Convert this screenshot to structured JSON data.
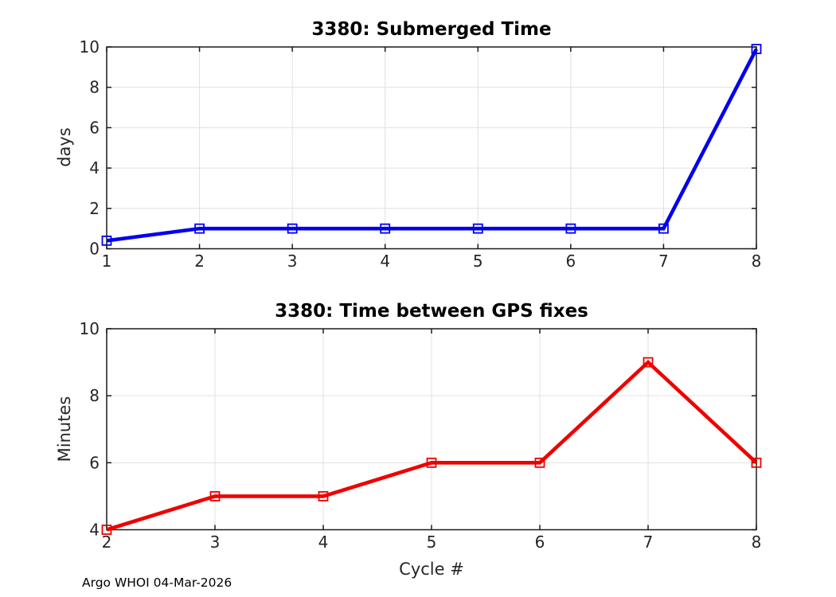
{
  "figure": {
    "footer": "Argo WHOI 04-Mar-2026",
    "background": "#ffffff",
    "grid_color": "#e0e0e0",
    "axis_color": "#1a1a1a",
    "text_color": "#262626",
    "tick_font_px": 20
  },
  "chart_data": [
    {
      "type": "line",
      "title": "3380: Submerged Time",
      "xlabel": "",
      "ylabel": "days",
      "x": [
        1,
        2,
        3,
        4,
        5,
        6,
        7,
        8
      ],
      "values": [
        0.4,
        1,
        1,
        1,
        1,
        1,
        1,
        9.9
      ],
      "series_color": "#0000ee",
      "marker": "open-square",
      "line_width": 4.6,
      "xlim": [
        1,
        8
      ],
      "ylim": [
        0,
        10
      ],
      "xticks": [
        1,
        2,
        3,
        4,
        5,
        6,
        7,
        8
      ],
      "yticks": [
        0,
        2,
        4,
        6,
        8,
        10
      ],
      "grid": true,
      "legend": "none"
    },
    {
      "type": "line",
      "title": "3380: Time between GPS fixes",
      "xlabel": "Cycle #",
      "ylabel": "Minutes",
      "x": [
        2,
        3,
        4,
        5,
        6,
        7,
        8
      ],
      "values": [
        4,
        5,
        5,
        6,
        6,
        9,
        6
      ],
      "series_color": "#ee0000",
      "marker": "open-square",
      "line_width": 4.6,
      "xlim": [
        2,
        8
      ],
      "ylim": [
        4,
        10
      ],
      "xticks": [
        2,
        3,
        4,
        5,
        6,
        7,
        8
      ],
      "yticks": [
        4,
        6,
        8,
        10
      ],
      "grid": true,
      "legend": "none"
    }
  ]
}
